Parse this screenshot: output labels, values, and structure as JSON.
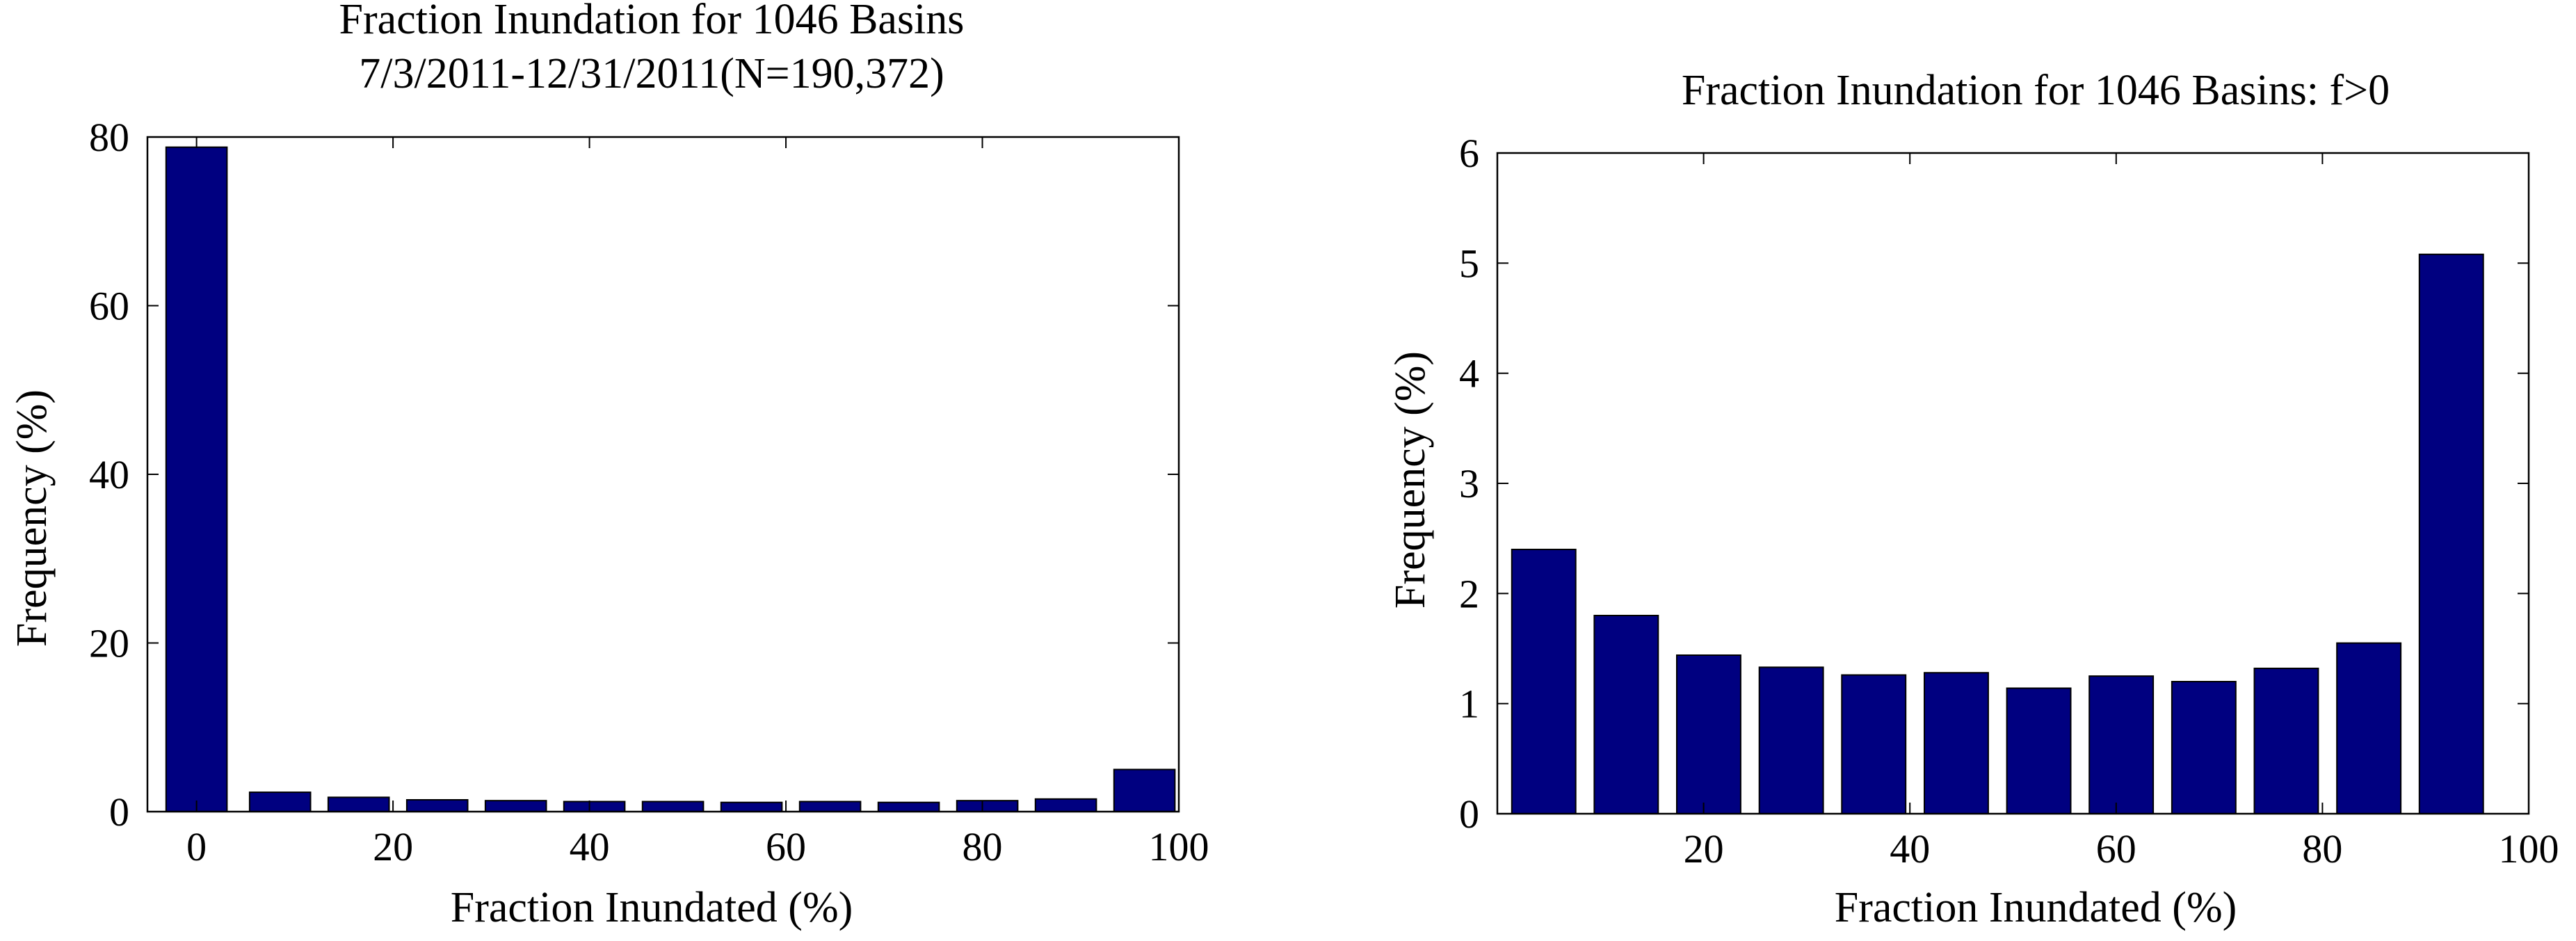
{
  "chart_data": [
    {
      "type": "bar",
      "title": "Fraction Inundation for 1046 Basins",
      "subtitle": "7/3/2011-12/31/2011(N=190,372)",
      "xlabel": "Fraction Inundated (%)",
      "ylabel": "Frequency (%)",
      "xlim": [
        -5,
        100
      ],
      "ylim": [
        0,
        80
      ],
      "xticks": [
        0,
        20,
        40,
        60,
        80,
        100
      ],
      "yticks": [
        0,
        20,
        40,
        60,
        80
      ],
      "x": [
        0,
        8.5,
        16.5,
        24.5,
        32.5,
        40.5,
        48.5,
        56.5,
        64.5,
        72.5,
        80.5,
        88.5,
        96.5
      ],
      "values": [
        78.8,
        2.3,
        1.7,
        1.4,
        1.3,
        1.2,
        1.2,
        1.1,
        1.2,
        1.1,
        1.3,
        1.5,
        5.0
      ],
      "bar_color": "#000080",
      "grid": false
    },
    {
      "type": "bar",
      "title": "Fraction Inundation for 1046 Basins: f>0",
      "xlabel": "Fraction Inundated (%)",
      "ylabel": "Frequency (%)",
      "xlim": [
        0,
        100
      ],
      "ylim": [
        0,
        6
      ],
      "xticks": [
        20,
        40,
        60,
        80,
        100
      ],
      "yticks": [
        0,
        1,
        2,
        3,
        4,
        5,
        6
      ],
      "x": [
        4.5,
        12.5,
        20.5,
        28.5,
        36.5,
        44.5,
        52.5,
        60.5,
        68.5,
        76.5,
        84.5,
        92.5
      ],
      "values": [
        2.4,
        1.8,
        1.44,
        1.33,
        1.26,
        1.28,
        1.14,
        1.25,
        1.2,
        1.32,
        1.55,
        5.08
      ],
      "bar_color": "#000080",
      "grid": false
    }
  ]
}
